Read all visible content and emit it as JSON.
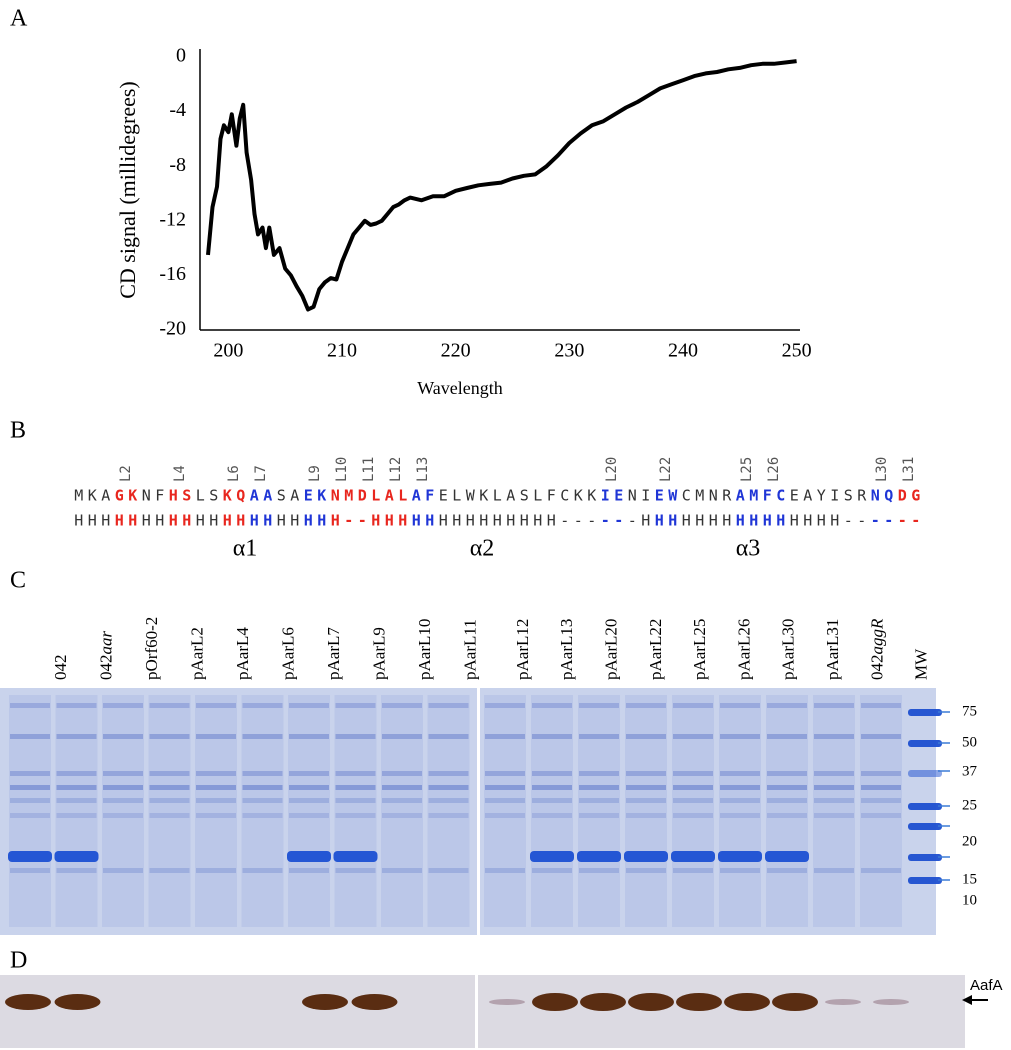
{
  "panel_labels": [
    "A",
    "B",
    "C",
    "D"
  ],
  "chart_data": {
    "type": "line",
    "xlabel": "Wavelength",
    "ylabel": "CD signal (millidegrees)",
    "x": [
      198.2,
      198.6,
      199,
      199.3,
      199.6,
      200,
      200.3,
      200.7,
      201,
      201.3,
      201.6,
      202,
      202.3,
      202.6,
      203,
      203.3,
      203.6,
      204,
      204.5,
      205,
      205.5,
      206,
      206.5,
      207,
      207.5,
      208,
      208.5,
      209,
      209.5,
      210,
      210.5,
      211,
      211.5,
      212,
      212.5,
      213,
      213.5,
      214,
      214.5,
      215,
      215.5,
      216,
      217,
      218,
      219,
      220,
      221,
      222,
      223,
      224,
      225,
      226,
      227,
      228,
      229,
      230,
      231,
      232,
      233,
      234,
      235,
      236,
      237,
      238,
      239,
      240,
      241,
      242,
      243,
      244,
      245,
      246,
      247,
      248,
      249,
      250
    ],
    "values": [
      -14.5,
      -11,
      -9.5,
      -6,
      -5,
      -5.5,
      -4.2,
      -6.5,
      -4.5,
      -3.5,
      -7,
      -9,
      -11.5,
      -13,
      -12.5,
      -14,
      -12.5,
      -14.5,
      -14,
      -15.5,
      -16,
      -16.8,
      -17.5,
      -18.5,
      -18.3,
      -17,
      -16.5,
      -16.2,
      -16.3,
      -15,
      -14,
      -13,
      -12.5,
      -12,
      -12.3,
      -12.2,
      -12,
      -11.5,
      -11,
      -10.8,
      -10.5,
      -10.3,
      -10.5,
      -10.2,
      -10.2,
      -9.8,
      -9.6,
      -9.4,
      -9.3,
      -9.2,
      -8.9,
      -8.7,
      -8.6,
      -8,
      -7.2,
      -6.3,
      -5.6,
      -5,
      -4.7,
      -4.2,
      -3.7,
      -3.3,
      -2.8,
      -2.3,
      -2,
      -1.7,
      -1.4,
      -1.2,
      -1.1,
      -0.9,
      -0.8,
      -0.6,
      -0.5,
      -0.5,
      -0.4,
      -0.3
    ],
    "color": "#000000",
    "xlim": [
      197.5,
      250.3
    ],
    "ylim": [
      -20,
      0
    ],
    "xticks": [
      200,
      210,
      220,
      230,
      240,
      250
    ],
    "yticks": [
      0,
      -4,
      -8,
      -12,
      -16,
      -20
    ],
    "grid": false
  },
  "sequence": {
    "segments": [
      {
        "residues": "MKA",
        "structure": "HHH",
        "color": "#333333"
      },
      {
        "residues": "GK",
        "structure": "HH",
        "color": "#e8261e",
        "label": "L2"
      },
      {
        "residues": "NF",
        "structure": "HH",
        "color": "#333333"
      },
      {
        "residues": "HS",
        "structure": "HH",
        "color": "#e8261e",
        "label": "L4"
      },
      {
        "residues": "LS",
        "structure": "HH",
        "color": "#333333"
      },
      {
        "residues": "KQ",
        "structure": "HH",
        "color": "#e8261e",
        "label": "L6"
      },
      {
        "residues": "AA",
        "structure": "HH",
        "color": "#1f35d6",
        "label": "L7"
      },
      {
        "residues": "SA",
        "structure": "HH",
        "color": "#333333"
      },
      {
        "residues": "EK",
        "structure": "HH",
        "color": "#1f35d6",
        "label": "L9"
      },
      {
        "residues": "NM",
        "structure": "H-",
        "color": "#e8261e",
        "label": "L10"
      },
      {
        "residues": "DL",
        "structure": "-H",
        "color": "#e8261e",
        "label": "L11"
      },
      {
        "residues": "AL",
        "structure": "HH",
        "color": "#e8261e",
        "label": "L12"
      },
      {
        "residues": "AF",
        "structure": "HH",
        "color": "#1f35d6",
        "label": "L13"
      },
      {
        "residues": "ELWKLASLFCKK",
        "structure": "HHHHHHHHH---",
        "color": "#333333"
      },
      {
        "residues": "IE",
        "structure": "--",
        "color": "#1f35d6",
        "label": "L20"
      },
      {
        "residues": "NI",
        "structure": "-H",
        "color": "#333333"
      },
      {
        "residues": "EW",
        "structure": "HH",
        "color": "#1f35d6",
        "label": "L22"
      },
      {
        "residues": "CMNR",
        "structure": "HHHH",
        "color": "#333333"
      },
      {
        "residues": "AM",
        "structure": "HH",
        "color": "#1f35d6",
        "label": "L25"
      },
      {
        "residues": "FC",
        "structure": "HH",
        "color": "#1f35d6",
        "label": "L26"
      },
      {
        "residues": "EAYISR",
        "structure": "HHHH--",
        "color": "#333333"
      },
      {
        "residues": "NQ",
        "structure": "--",
        "color": "#1f35d6",
        "label": "L30"
      },
      {
        "residues": "DG",
        "structure": "--",
        "color": "#e8261e",
        "label": "L31"
      }
    ],
    "helix_labels": [
      "α1",
      "α2",
      "α3"
    ]
  },
  "gel": {
    "lanes_left": [
      "042",
      {
        "plain": "042",
        "italic": "aar"
      },
      "pOrf60-2",
      "pAarL2",
      "pAarL4",
      "pAarL6",
      "pAarL7",
      "pAarL9",
      "pAarL10",
      "pAarL11"
    ],
    "lanes_right": [
      "pAarL12",
      "pAarL13",
      "pAarL20",
      "pAarL22",
      "pAarL25",
      "pAarL26",
      "pAarL30",
      "pAarL31",
      {
        "plain": "042",
        "italic": "aggR"
      },
      "MW"
    ],
    "mw_markers": [
      75,
      50,
      37,
      25,
      20,
      15,
      10
    ]
  },
  "western": {
    "label": "AafA"
  }
}
